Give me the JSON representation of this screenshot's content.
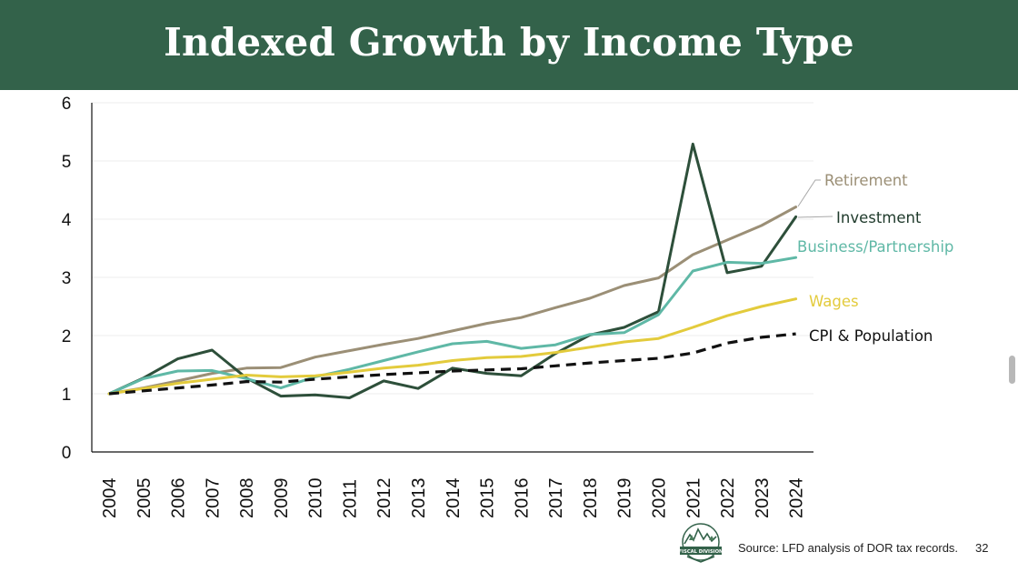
{
  "title": "Indexed Growth by Income Type",
  "chart_data": {
    "type": "line",
    "title": "",
    "xlabel": "",
    "ylabel": "",
    "ylim": [
      0,
      6
    ],
    "yticks": [
      "0",
      "1",
      "2",
      "3",
      "4",
      "5",
      "6"
    ],
    "categories": [
      "2004",
      "2005",
      "2006",
      "2007",
      "2008",
      "2009",
      "2010",
      "2011",
      "2012",
      "2013",
      "2014",
      "2015",
      "2016",
      "2017",
      "2018",
      "2019",
      "2020",
      "2021",
      "2022",
      "2023",
      "2024"
    ],
    "grid": true,
    "legend": "direct labels at line ends (right)",
    "series": [
      {
        "name": "Retirement",
        "color": "#9b8f76",
        "style": "solid",
        "values": [
          1.0,
          1.1,
          1.22,
          1.35,
          1.44,
          1.45,
          1.63,
          1.74,
          1.85,
          1.95,
          2.08,
          2.21,
          2.31,
          2.48,
          2.64,
          2.86,
          2.99,
          3.39,
          3.64,
          3.89,
          4.21
        ]
      },
      {
        "name": "Investment",
        "color": "#2d4f3a",
        "style": "solid",
        "values": [
          1.0,
          1.27,
          1.6,
          1.75,
          1.27,
          0.96,
          0.98,
          0.93,
          1.22,
          1.09,
          1.44,
          1.35,
          1.31,
          1.69,
          2.01,
          2.14,
          2.41,
          5.29,
          3.08,
          3.19,
          4.04
        ]
      },
      {
        "name": "Business/Partnership",
        "color": "#5fb8a6",
        "style": "solid",
        "values": [
          1.0,
          1.26,
          1.39,
          1.4,
          1.26,
          1.1,
          1.29,
          1.42,
          1.57,
          1.72,
          1.86,
          1.9,
          1.78,
          1.84,
          2.02,
          2.05,
          2.36,
          3.11,
          3.26,
          3.24,
          3.34
        ]
      },
      {
        "name": "Wages",
        "color": "#e3cb3c",
        "style": "solid",
        "values": [
          1.0,
          1.09,
          1.18,
          1.25,
          1.32,
          1.29,
          1.31,
          1.37,
          1.44,
          1.49,
          1.57,
          1.62,
          1.64,
          1.71,
          1.8,
          1.89,
          1.95,
          2.14,
          2.34,
          2.5,
          2.63
        ]
      },
      {
        "name": "CPI & Population",
        "color": "#111111",
        "style": "dashed",
        "values": [
          1.0,
          1.05,
          1.1,
          1.15,
          1.21,
          1.2,
          1.25,
          1.29,
          1.33,
          1.36,
          1.39,
          1.41,
          1.43,
          1.48,
          1.53,
          1.57,
          1.61,
          1.7,
          1.87,
          1.97,
          2.03
        ]
      }
    ]
  },
  "footer": {
    "source": "Source: LFD analysis of DOR tax records.",
    "page_number": "32",
    "logo_text": "FISCAL DIVISION",
    "logo_color": "#33624a"
  }
}
